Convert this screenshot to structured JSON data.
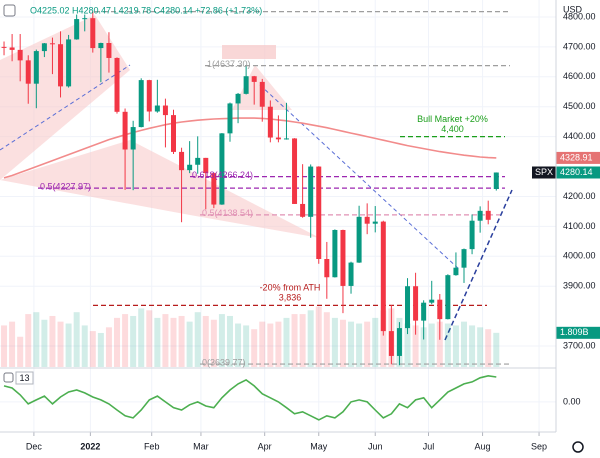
{
  "header": "O4225.02 H4280.47 L4219.78 C4280.14 +72.86 (+1.73%)",
  "chart_data": [
    {
      "type": "candlestick",
      "symbol": "SPX",
      "currency": "USD",
      "up_color": "#089981",
      "down_color": "#f23645",
      "grid": true,
      "xlim": [
        -0.5,
        68.4
      ],
      "ylim": [
        3630,
        4830
      ],
      "xticks": [
        {
          "value": 3.7,
          "label": "Dec"
        },
        {
          "value": 10.7,
          "label": "2022"
        },
        {
          "value": 18.3,
          "label": "Feb"
        },
        {
          "value": 24.4,
          "label": "Mar"
        },
        {
          "value": 32.3,
          "label": "Apr"
        },
        {
          "value": 39,
          "label": "May"
        },
        {
          "value": 46,
          "label": "Jun"
        },
        {
          "value": 52.6,
          "label": "Jul"
        },
        {
          "value": 59.3,
          "label": "Aug"
        },
        {
          "value": 66.3,
          "label": "Sep"
        }
      ],
      "yticks": [
        {
          "value": 4800,
          "label": "4800.00"
        },
        {
          "value": 4700,
          "label": "4700.00"
        },
        {
          "value": 4600,
          "label": "4600.00"
        },
        {
          "value": 4500,
          "label": "4500.00"
        },
        {
          "value": 4400,
          "label": "4400.00"
        },
        {
          "value": 4200,
          "label": "4200.00"
        },
        {
          "value": 4100,
          "label": "4100.00"
        },
        {
          "value": 4000,
          "label": "4000.00"
        },
        {
          "value": 3900,
          "label": "3900.00"
        },
        {
          "value": 3700,
          "label": "3700.00"
        }
      ],
      "ohlc": [
        [
          4700,
          4718,
          4672,
          4698
        ],
        [
          4698,
          4743,
          4652,
          4690
        ],
        [
          4690,
          4743,
          4585,
          4655
        ],
        [
          4655,
          4672,
          4510,
          4577
        ],
        [
          4577,
          4691,
          4495,
          4686
        ],
        [
          4686,
          4713,
          4666,
          4712
        ],
        [
          4712,
          4731,
          4609,
          4709
        ],
        [
          4709,
          4752,
          4531,
          4568
        ],
        [
          4568,
          4740,
          4564,
          4725
        ],
        [
          4725,
          4808,
          4724,
          4793
        ],
        [
          4793,
          4808,
          4752,
          4796
        ],
        [
          4796,
          4819,
          4681,
          4696
        ],
        [
          4696,
          4714,
          4582,
          4713
        ],
        [
          4713,
          4749,
          4614,
          4663
        ],
        [
          4663,
          4665,
          4477,
          4483
        ],
        [
          4483,
          4494,
          4222,
          4357
        ],
        [
          4357,
          4453,
          4221,
          4432
        ],
        [
          4432,
          4595,
          4431,
          4589
        ],
        [
          4589,
          4590,
          4451,
          4484
        ],
        [
          4484,
          4590,
          4480,
          4504
        ],
        [
          4504,
          4527,
          4364,
          4472
        ],
        [
          4472,
          4490,
          4342,
          4349
        ],
        [
          4349,
          4363,
          4114,
          4288
        ],
        [
          4288,
          4385,
          4278,
          4306
        ],
        [
          4306,
          4401,
          4276,
          4329
        ],
        [
          4329,
          4329,
          4157,
          4278
        ],
        [
          4278,
          4280,
          4161,
          4173
        ],
        [
          4173,
          4412,
          4172,
          4411
        ],
        [
          4411,
          4514,
          4383,
          4511
        ],
        [
          4511,
          4546,
          4445,
          4543
        ],
        [
          4543,
          4637,
          4541,
          4602
        ],
        [
          4602,
          4603,
          4507,
          4583
        ],
        [
          4583,
          4593,
          4450,
          4500
        ],
        [
          4500,
          4521,
          4381,
          4397
        ],
        [
          4397,
          4471,
          4381,
          4391
        ],
        [
          4391,
          4513,
          4390,
          4394
        ],
        [
          4394,
          4395,
          4175,
          4175
        ],
        [
          4175,
          4308,
          4129,
          4132
        ],
        [
          4132,
          4307,
          4062,
          4300
        ],
        [
          4300,
          4301,
          3975,
          3991
        ],
        [
          3991,
          4048,
          3858,
          3930
        ],
        [
          3930,
          4090,
          3929,
          4088
        ],
        [
          4088,
          4089,
          3810,
          3901
        ],
        [
          3901,
          3982,
          3875,
          3979
        ],
        [
          3979,
          4169,
          3978,
          4132
        ],
        [
          4132,
          4177,
          4074,
          4109
        ],
        [
          4109,
          4168,
          4080,
          4116
        ],
        [
          4116,
          4119,
          3735,
          3750
        ],
        [
          3750,
          3837,
          3639,
          3667
        ],
        [
          3667,
          3780,
          3636,
          3760
        ],
        [
          3760,
          3927,
          3740,
          3900
        ],
        [
          3900,
          3945,
          3738,
          3785
        ],
        [
          3785,
          3853,
          3722,
          3845
        ],
        [
          3845,
          3918,
          3840,
          3855
        ],
        [
          3855,
          3874,
          3721,
          3790
        ],
        [
          3790,
          3940,
          3789,
          3937
        ],
        [
          3937,
          4013,
          3935,
          3962
        ],
        [
          3962,
          4026,
          3911,
          4024
        ],
        [
          4024,
          4140,
          4007,
          4119
        ],
        [
          4119,
          4167,
          4079,
          4152
        ],
        [
          4152,
          4186,
          4107,
          4122
        ],
        [
          4225.02,
          4280.47,
          4219.78,
          4280.14
        ]
      ],
      "moving_average": {
        "color": "#f28b8b",
        "values": [
          4262,
          4270,
          4280,
          4290,
          4300,
          4310,
          4320,
          4330,
          4340,
          4350,
          4360,
          4370,
          4380,
          4390,
          4398,
          4406,
          4414,
          4421,
          4428,
          4434,
          4440,
          4445,
          4449,
          4452,
          4455,
          4457,
          4459,
          4460,
          4461,
          4462,
          4462,
          4462,
          4461,
          4459,
          4456,
          4453,
          4449,
          4445,
          4440,
          4435,
          4430,
          4424,
          4418,
          4412,
          4406,
          4400,
          4394,
          4388,
          4382,
          4376,
          4370,
          4365,
          4360,
          4355,
          4350,
          4346,
          4342,
          4338,
          4335,
          4332,
          4330,
          4328.91
        ]
      },
      "volume": {
        "ylim": [
          0,
          19
        ],
        "last_label": "1.809B",
        "values": [
          2.2,
          2.4,
          1.6,
          2.8,
          2.9,
          2.5,
          2.7,
          2.4,
          2.3,
          2.9,
          2.2,
          1.9,
          1.8,
          2.1,
          2.6,
          2.8,
          2.7,
          3.1,
          3.0,
          2.6,
          2.8,
          2.6,
          2.7,
          2.4,
          2.9,
          2.7,
          2.5,
          2.8,
          2.7,
          2.3,
          2.2,
          2.0,
          2.4,
          2.3,
          2.4,
          2.6,
          2.8,
          2.8,
          3.0,
          3.2,
          2.9,
          2.6,
          2.5,
          2.4,
          2.3,
          2.4,
          2.6,
          3.0,
          3.1,
          2.6,
          2.3,
          2.2,
          2.1,
          2.3,
          2.4,
          2.3,
          2.2,
          2.4,
          2.2,
          2.1,
          2.0,
          1.809
        ]
      },
      "levels": [
        {
          "value": 4818,
          "color": "#9e9e9e"
        },
        {
          "value": 4637.3,
          "label": "1(4637.30)",
          "color": "#9e9e9e"
        },
        {
          "value": 4266.24,
          "label": "0.618(4266.24)",
          "color": "#9c27b0"
        },
        {
          "value": 4227.97,
          "label": "0.5(4227.97)",
          "color": "#9c27b0"
        },
        {
          "value": 4138.54,
          "label": "0.5(4138.54)",
          "color": "#e091b4"
        },
        {
          "value": 3639.77,
          "label": "0(3639.77)",
          "color": "#9e9e9e"
        },
        {
          "value": 4400,
          "label": "4,400",
          "title": "Bull Market +20%",
          "color": "#1b9e1b"
        },
        {
          "value": 3836,
          "label": "3,836",
          "title": "-20% from ATH",
          "color": "#b71c1c"
        }
      ]
    },
    {
      "type": "line",
      "label": "13",
      "color": "#4caf50",
      "ylim": [
        -0.9,
        1.1
      ],
      "yticks": [
        {
          "value": 0,
          "label": "0.00"
        }
      ],
      "values": [
        0.55,
        0.48,
        0.24,
        -0.07,
        0.07,
        0.2,
        -0.07,
        0.17,
        0.34,
        0.41,
        0.31,
        0.17,
        0.07,
        -0.07,
        -0.28,
        -0.48,
        -0.55,
        -0.28,
        0.07,
        0.2,
        0,
        -0.2,
        -0.28,
        -0.1,
        0,
        -0.14,
        -0.2,
        0.14,
        0.41,
        0.62,
        0.76,
        0.55,
        0.28,
        0.14,
        0,
        -0.2,
        -0.41,
        -0.34,
        -0.48,
        -0.62,
        -0.48,
        -0.55,
        -0.34,
        0,
        0.07,
        0,
        -0.28,
        -0.55,
        -0.41,
        -0.07,
        -0.2,
        0.07,
        0.14,
        -0.2,
        0.07,
        0.34,
        0.48,
        0.62,
        0.69,
        0.83,
        0.9,
        0.86
      ]
    }
  ]
}
